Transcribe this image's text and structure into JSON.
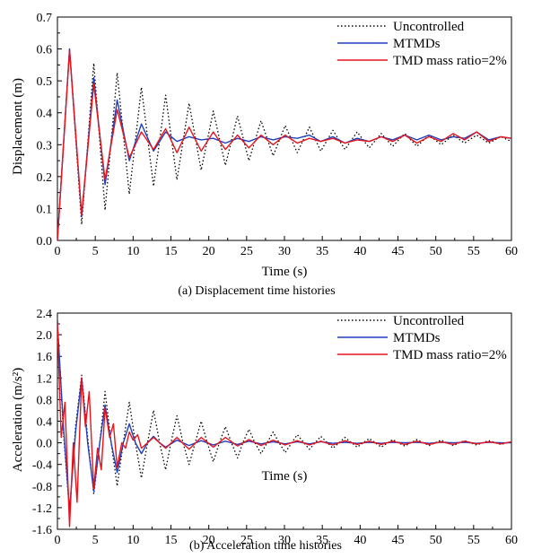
{
  "chart_data": [
    {
      "type": "line",
      "caption": "(a) Displacement time histories",
      "xlabel": "Time (s)",
      "ylabel": "Displacement (m)",
      "xlim": [
        0,
        60
      ],
      "ylim": [
        0.0,
        0.7
      ],
      "xticks": [
        "0",
        "5",
        "10",
        "15",
        "20",
        "25",
        "30",
        "35",
        "40",
        "45",
        "50",
        "55",
        "60"
      ],
      "yticks": [
        "0.0",
        "0.1",
        "0.2",
        "0.3",
        "0.4",
        "0.5",
        "0.6",
        "0.7"
      ],
      "legend_position": "top-right",
      "grid": false,
      "series": [
        {
          "name": "Uncontrolled",
          "color": "#000000",
          "style": "dotted",
          "x": [
            0,
            1.6,
            3.2,
            4.8,
            6.3,
            7.9,
            9.5,
            11.1,
            12.7,
            14.3,
            15.8,
            17.4,
            19.0,
            20.6,
            22.2,
            23.8,
            25.3,
            26.9,
            28.5,
            30.1,
            31.7,
            33.3,
            34.8,
            36.4,
            38.0,
            39.6,
            41.2,
            42.8,
            44.3,
            45.9,
            47.5,
            49.1,
            50.7,
            52.3,
            53.8,
            55.4,
            57.0,
            58.6,
            60.0
          ],
          "y": [
            0.0,
            0.6,
            0.05,
            0.555,
            0.095,
            0.525,
            0.145,
            0.48,
            0.17,
            0.455,
            0.19,
            0.43,
            0.22,
            0.405,
            0.235,
            0.39,
            0.25,
            0.375,
            0.265,
            0.36,
            0.275,
            0.355,
            0.28,
            0.345,
            0.285,
            0.34,
            0.29,
            0.335,
            0.295,
            0.335,
            0.295,
            0.33,
            0.3,
            0.33,
            0.305,
            0.33,
            0.305,
            0.325,
            0.31
          ]
        },
        {
          "name": "MTMDs",
          "color": "#1f3fbf",
          "style": "solid",
          "x": [
            0,
            1.6,
            3.2,
            4.8,
            6.3,
            7.9,
            9.5,
            11.1,
            12.7,
            14.3,
            15.8,
            17.4,
            19.0,
            20.6,
            22.2,
            23.8,
            25.3,
            26.9,
            28.5,
            30.1,
            31.7,
            33.3,
            34.8,
            36.4,
            38.0,
            39.6,
            41.2,
            42.8,
            44.3,
            45.9,
            47.5,
            49.1,
            50.7,
            52.3,
            53.8,
            55.4,
            57.0,
            58.6,
            60.0
          ],
          "y": [
            0.0,
            0.6,
            0.075,
            0.51,
            0.175,
            0.44,
            0.25,
            0.365,
            0.28,
            0.34,
            0.31,
            0.325,
            0.315,
            0.32,
            0.305,
            0.32,
            0.31,
            0.325,
            0.315,
            0.325,
            0.32,
            0.33,
            0.31,
            0.325,
            0.305,
            0.32,
            0.31,
            0.325,
            0.315,
            0.33,
            0.315,
            0.33,
            0.315,
            0.325,
            0.32,
            0.34,
            0.315,
            0.325,
            0.32
          ]
        },
        {
          "name": "TMD mass ratio=2%",
          "color": "#e8141c",
          "style": "solid",
          "x": [
            0,
            1.6,
            3.2,
            4.8,
            6.3,
            7.9,
            9.5,
            11.1,
            12.7,
            14.3,
            15.8,
            17.4,
            19.0,
            20.6,
            22.2,
            23.8,
            25.3,
            26.9,
            28.5,
            30.1,
            31.7,
            33.3,
            34.8,
            36.4,
            38.0,
            39.6,
            41.2,
            42.8,
            44.3,
            45.9,
            47.5,
            49.1,
            50.7,
            52.3,
            53.8,
            55.4,
            57.0,
            58.6,
            60.0
          ],
          "y": [
            0.0,
            0.595,
            0.08,
            0.49,
            0.19,
            0.41,
            0.26,
            0.34,
            0.285,
            0.35,
            0.275,
            0.355,
            0.28,
            0.34,
            0.285,
            0.33,
            0.29,
            0.33,
            0.3,
            0.33,
            0.305,
            0.32,
            0.31,
            0.32,
            0.305,
            0.315,
            0.31,
            0.325,
            0.31,
            0.33,
            0.305,
            0.325,
            0.31,
            0.335,
            0.315,
            0.34,
            0.31,
            0.325,
            0.32
          ]
        }
      ]
    },
    {
      "type": "line",
      "caption": "(b) Acceleration time histories",
      "xlabel": "Time (s)",
      "ylabel": "Acceleration (m/s²)",
      "xlim": [
        0,
        60
      ],
      "ylim": [
        -1.6,
        2.4
      ],
      "xticks": [
        "0",
        "5",
        "10",
        "15",
        "20",
        "25",
        "30",
        "35",
        "40",
        "45",
        "50",
        "55",
        "60"
      ],
      "yticks": [
        "-1.6",
        "-1.2",
        "-0.8",
        "-0.4",
        "0.0",
        "0.4",
        "0.8",
        "1.2",
        "1.6",
        "2.0",
        "2.4"
      ],
      "legend_position": "top-right",
      "grid": false,
      "series": [
        {
          "name": "Uncontrolled",
          "color": "#000000",
          "style": "dotted",
          "x": [
            0,
            0.8,
            1.6,
            2.4,
            3.2,
            4.0,
            4.8,
            5.6,
            6.3,
            7.1,
            7.9,
            8.7,
            9.5,
            10.3,
            11.1,
            11.9,
            12.7,
            13.5,
            14.3,
            15.0,
            15.8,
            16.6,
            17.4,
            18.2,
            19.0,
            19.8,
            20.6,
            21.4,
            22.2,
            23.0,
            23.8,
            24.5,
            25.3,
            26.1,
            26.9,
            27.7,
            28.5,
            29.3,
            30.1,
            31.7,
            33.3,
            34.8,
            36.4,
            38.0,
            39.6,
            41.2,
            42.8,
            44.3,
            45.9,
            47.5,
            49.1,
            50.7,
            52.3,
            53.8,
            55.4,
            57.0,
            58.6,
            60.0
          ],
          "y": [
            2.25,
            0.2,
            -1.3,
            0.3,
            1.25,
            0.1,
            -0.95,
            0.0,
            0.95,
            0.0,
            -0.8,
            0.0,
            0.75,
            0.0,
            -0.65,
            0.0,
            0.6,
            0.0,
            -0.5,
            0.0,
            0.5,
            0.0,
            -0.4,
            0.0,
            0.4,
            0.0,
            -0.35,
            0.0,
            0.3,
            0.0,
            -0.28,
            0.0,
            0.25,
            0.0,
            -0.2,
            0.0,
            0.2,
            0.0,
            -0.18,
            0.15,
            -0.12,
            0.12,
            -0.1,
            0.1,
            -0.08,
            0.08,
            -0.08,
            0.06,
            -0.06,
            0.06,
            -0.05,
            0.05,
            -0.05,
            0.04,
            -0.04,
            0.04,
            -0.03,
            0.02
          ]
        },
        {
          "name": "MTMDs",
          "color": "#1f3fbf",
          "style": "solid",
          "x": [
            0,
            0.8,
            1.6,
            2.4,
            3.2,
            4.0,
            4.8,
            5.6,
            6.3,
            7.1,
            7.9,
            8.7,
            9.5,
            10.3,
            11.1,
            11.9,
            12.7,
            13.5,
            14.3,
            15.8,
            17.4,
            19.0,
            20.6,
            22.2,
            23.8,
            25.3,
            26.9,
            28.5,
            30.1,
            31.7,
            33.3,
            34.8,
            36.4,
            38.0,
            39.6,
            41.2,
            42.8,
            44.3,
            45.9,
            47.5,
            49.1,
            50.7,
            52.3,
            53.8,
            55.4,
            57.0,
            58.6,
            60.0
          ],
          "y": [
            2.2,
            0.3,
            -1.25,
            0.2,
            1.2,
            0.0,
            -0.9,
            0.0,
            0.7,
            0.0,
            -0.55,
            0.0,
            0.35,
            0.0,
            -0.2,
            0.0,
            0.12,
            0.0,
            -0.08,
            0.05,
            -0.05,
            0.04,
            -0.04,
            0.03,
            -0.03,
            0.03,
            -0.02,
            0.02,
            -0.02,
            0.02,
            -0.02,
            0.02,
            -0.01,
            0.01,
            -0.01,
            0.01,
            -0.01,
            0.01,
            0.0,
            0.01,
            -0.01,
            0.01,
            0.0,
            0.01,
            -0.01,
            0.01,
            0.0,
            0.0
          ]
        },
        {
          "name": "TMD mass ratio=2%",
          "color": "#e8141c",
          "style": "solid",
          "x": [
            0,
            0.5,
            1.0,
            1.6,
            2.1,
            2.6,
            3.2,
            3.7,
            4.2,
            4.8,
            5.3,
            5.8,
            6.3,
            6.9,
            7.4,
            7.9,
            8.5,
            9.0,
            9.5,
            10.0,
            10.6,
            11.1,
            12.7,
            14.3,
            15.8,
            17.4,
            19.0,
            20.6,
            22.2,
            23.8,
            25.3,
            26.9,
            28.5,
            30.1,
            31.7,
            33.3,
            34.8,
            36.4,
            38.0,
            39.6,
            41.2,
            42.8,
            44.3,
            45.9,
            47.5,
            49.1,
            50.7,
            52.3,
            53.8,
            55.4,
            57.0,
            58.6,
            60.0
          ],
          "y": [
            2.2,
            0.1,
            0.75,
            -1.55,
            0.0,
            -1.1,
            1.2,
            0.3,
            0.95,
            -0.85,
            -0.1,
            -0.5,
            0.65,
            0.1,
            0.35,
            -0.45,
            0.0,
            -0.1,
            0.2,
            0.05,
            0.15,
            -0.1,
            0.1,
            -0.1,
            0.1,
            -0.12,
            0.1,
            -0.08,
            0.1,
            -0.06,
            0.06,
            -0.05,
            0.05,
            -0.04,
            0.04,
            -0.04,
            0.03,
            -0.04,
            0.04,
            -0.03,
            0.03,
            -0.03,
            0.03,
            -0.03,
            0.03,
            -0.03,
            0.02,
            -0.03,
            0.03,
            -0.02,
            0.02,
            -0.02,
            0.02
          ]
        }
      ]
    }
  ]
}
